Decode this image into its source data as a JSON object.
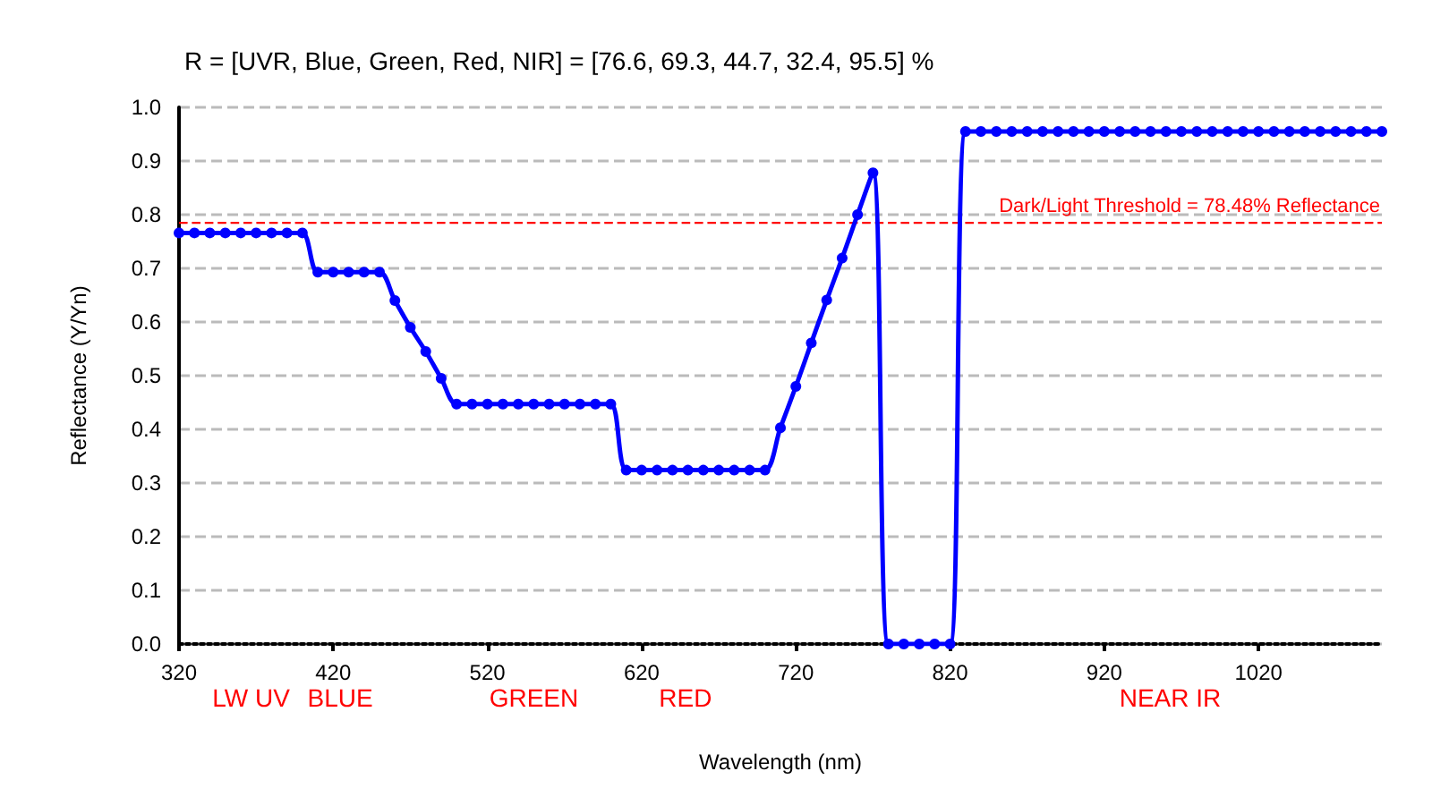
{
  "chart_data": {
    "type": "line",
    "title": "R = [UVR, Blue, Green, Red, NIR] = [76.6, 69.3, 44.7, 32.4, 95.5] %",
    "xlabel": "Wavelength (nm)",
    "ylabel": "Reflectance (Y/Yn)",
    "x": [
      320,
      330,
      340,
      350,
      360,
      370,
      380,
      390,
      400,
      410,
      420,
      430,
      440,
      450,
      460,
      470,
      480,
      490,
      500,
      510,
      520,
      530,
      540,
      550,
      560,
      570,
      580,
      590,
      600,
      610,
      620,
      630,
      640,
      650,
      660,
      670,
      680,
      690,
      700,
      710,
      720,
      730,
      740,
      750,
      760,
      770,
      780,
      790,
      800,
      810,
      820,
      830,
      840,
      850,
      860,
      870,
      880,
      890,
      900,
      910,
      920,
      930,
      940,
      950,
      960,
      970,
      980,
      990,
      1000,
      1010,
      1020,
      1030,
      1040,
      1050,
      1060,
      1070,
      1080,
      1090,
      1100
    ],
    "series": [
      {
        "color": "#0000ff",
        "values": [
          0.766,
          0.766,
          0.766,
          0.766,
          0.766,
          0.766,
          0.766,
          0.766,
          0.766,
          0.693,
          0.693,
          0.693,
          0.693,
          0.693,
          0.64,
          0.59,
          0.545,
          0.495,
          0.447,
          0.447,
          0.447,
          0.447,
          0.447,
          0.447,
          0.447,
          0.447,
          0.447,
          0.447,
          0.447,
          0.324,
          0.324,
          0.324,
          0.324,
          0.324,
          0.324,
          0.324,
          0.324,
          0.324,
          0.324,
          0.403,
          0.48,
          0.561,
          0.641,
          0.719,
          0.8,
          0.878,
          0,
          0,
          0,
          0,
          0,
          0.955,
          0.955,
          0.955,
          0.955,
          0.955,
          0.955,
          0.955,
          0.955,
          0.955,
          0.955,
          0.955,
          0.955,
          0.955,
          0.955,
          0.955,
          0.955,
          0.955,
          0.955,
          0.955,
          0.955,
          0.955,
          0.955,
          0.955,
          0.955,
          0.955,
          0.955,
          0.955,
          0.955
        ]
      }
    ],
    "xlim": [
      320,
      1100
    ],
    "xticks": [
      320,
      420,
      520,
      620,
      720,
      820,
      920,
      1020
    ],
    "ylim": [
      0,
      1
    ],
    "yticks": [
      {
        "value": 0,
        "label": "0.0"
      },
      {
        "value": 0.1,
        "label": "0.1"
      },
      {
        "value": 0.2,
        "label": "0.2"
      },
      {
        "value": 0.3,
        "label": "0.3"
      },
      {
        "value": 0.4,
        "label": "0.4"
      },
      {
        "value": 0.5,
        "label": "0.5"
      },
      {
        "value": 0.6,
        "label": "0.6"
      },
      {
        "value": 0.7,
        "label": "0.7"
      },
      {
        "value": 0.8,
        "label": "0.8"
      },
      {
        "value": 0.9,
        "label": "0.9"
      },
      {
        "value": 1,
        "label": "1.0"
      }
    ],
    "ref_lines": [
      {
        "axis": "y",
        "value": 0.7848,
        "label": "Dark/Light Threshold = 78.48% Reflectance",
        "color": "#ff0000",
        "line_style": "dashed"
      }
    ],
    "annotations": [
      "LW UV",
      "BLUE",
      "GREEN",
      "RED",
      "NEAR IR"
    ],
    "grid": "y",
    "marker": "circle",
    "line_style": "solid"
  }
}
